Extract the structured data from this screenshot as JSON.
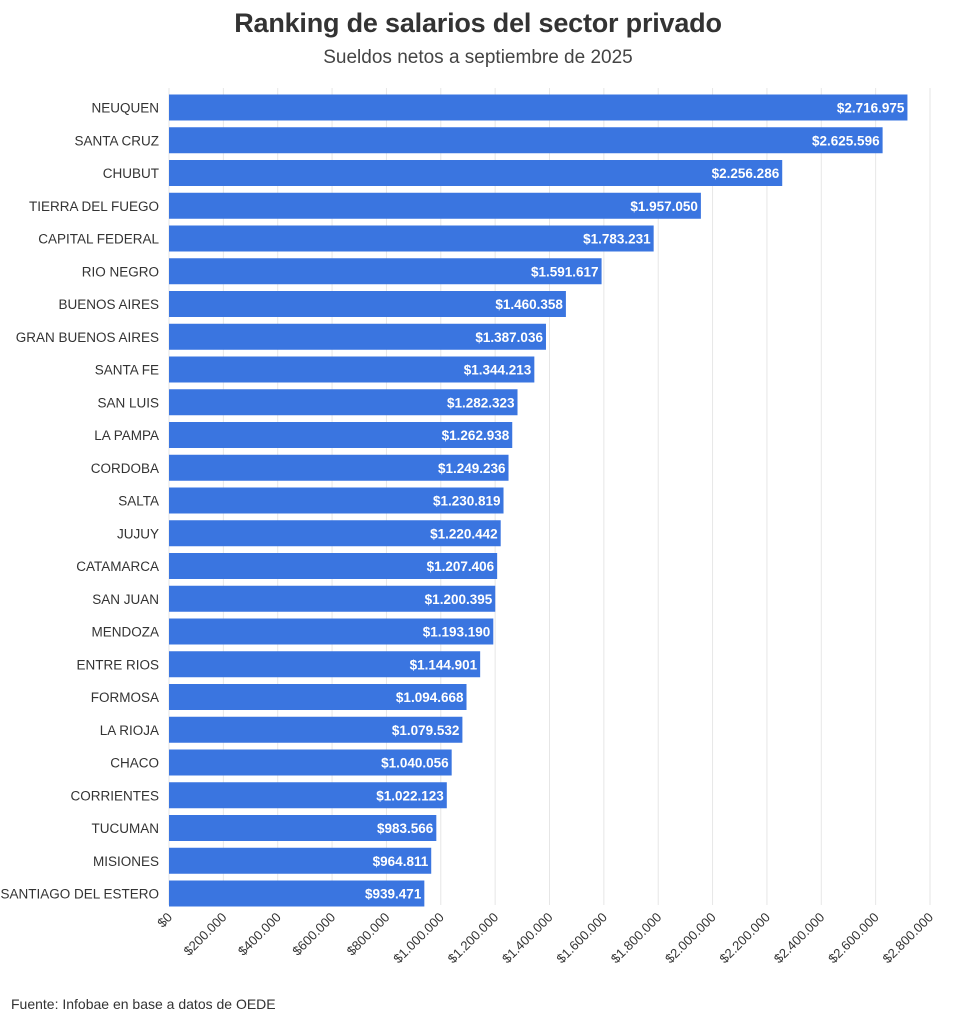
{
  "title": "Ranking de salarios del sector privado",
  "subtitle": "Sueldos netos a septiembre de 2025",
  "source": "Fuente: Infobae en base a datos de OEDE",
  "colors": {
    "bar": "#3a75e0",
    "grid": "#e6e6e6",
    "label_text": "#ffffff",
    "axis_text": "#333333"
  },
  "chart_data": {
    "type": "bar",
    "orientation": "horizontal",
    "categories": [
      "NEUQUEN",
      "SANTA CRUZ",
      "CHUBUT",
      "TIERRA DEL FUEGO",
      "CAPITAL FEDERAL",
      "RIO NEGRO",
      "BUENOS AIRES",
      "GRAN BUENOS AIRES",
      "SANTA FE",
      "SAN LUIS",
      "LA PAMPA",
      "CORDOBA",
      "SALTA",
      "JUJUY",
      "CATAMARCA",
      "SAN JUAN",
      "MENDOZA",
      "ENTRE RIOS",
      "FORMOSA",
      "LA RIOJA",
      "CHACO",
      "CORRIENTES",
      "TUCUMAN",
      "MISIONES",
      "SANTIAGO DEL ESTERO"
    ],
    "values": [
      2716975,
      2625596,
      2256286,
      1957050,
      1783231,
      1591617,
      1460358,
      1387036,
      1344213,
      1282323,
      1262938,
      1249236,
      1230819,
      1220442,
      1207406,
      1200395,
      1193190,
      1144901,
      1094668,
      1079532,
      1040056,
      1022123,
      983566,
      964811,
      939471
    ],
    "value_labels": [
      "$2.716.975",
      "$2.625.596",
      "$2.256.286",
      "$1.957.050",
      "$1.783.231",
      "$1.591.617",
      "$1.460.358",
      "$1.387.036",
      "$1.344.213",
      "$1.282.323",
      "$1.262.938",
      "$1.249.236",
      "$1.230.819",
      "$1.220.442",
      "$1.207.406",
      "$1.200.395",
      "$1.193.190",
      "$1.144.901",
      "$1.094.668",
      "$1.079.532",
      "$1.040.056",
      "$1.022.123",
      "$983.566",
      "$964.811",
      "$939.471"
    ],
    "xlim": [
      0,
      2800000
    ],
    "x_ticks": [
      0,
      200000,
      400000,
      600000,
      800000,
      1000000,
      1200000,
      1400000,
      1600000,
      1800000,
      2000000,
      2200000,
      2400000,
      2600000,
      2800000
    ],
    "x_tick_labels": [
      "$0",
      "$200.000",
      "$400.000",
      "$600.000",
      "$800.000",
      "$1.000.000",
      "$1.200.000",
      "$1.400.000",
      "$1.600.000",
      "$1.800.000",
      "$2.000.000",
      "$2.200.000",
      "$2.400.000",
      "$2.600.000",
      "$2.800.000"
    ],
    "grid": true,
    "xlabel": "",
    "ylabel": ""
  }
}
